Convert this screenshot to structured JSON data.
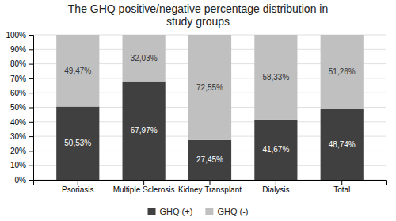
{
  "chart_data": {
    "type": "bar",
    "title": "The GHQ positive/negative percentage distribution in\nstudy groups",
    "categories": [
      "Psoriasis",
      "Multiple Sclerosis",
      "Kidney Transplant",
      "Dialysis",
      "Total"
    ],
    "series": [
      {
        "name": "GHQ (+)",
        "color": "#404040",
        "values": [
          50.53,
          67.97,
          27.45,
          41.67,
          48.74
        ],
        "value_labels": [
          "50,53%",
          "67,97%",
          "27,45%",
          "41,67%",
          "48,74%"
        ]
      },
      {
        "name": "GHQ (-)",
        "color": "#c0c0c0",
        "values": [
          49.47,
          32.03,
          72.55,
          58.33,
          51.26
        ],
        "value_labels": [
          "49,47%",
          "32,03%",
          "72,55%",
          "58,33%",
          "51,26%"
        ]
      }
    ],
    "stacked": true,
    "data_labels": true,
    "ylim": [
      0,
      100
    ],
    "yticks": [
      {
        "value": 0,
        "label": "0%"
      },
      {
        "value": 10,
        "label": "10%"
      },
      {
        "value": 20,
        "label": "20%"
      },
      {
        "value": 30,
        "label": "30%"
      },
      {
        "value": 40,
        "label": "40%"
      },
      {
        "value": 50,
        "label": "50%"
      },
      {
        "value": 60,
        "label": "60%"
      },
      {
        "value": 70,
        "label": "70%"
      },
      {
        "value": 80,
        "label": "80%"
      },
      {
        "value": 90,
        "label": "90%"
      },
      {
        "value": 100,
        "label": "100%"
      }
    ],
    "grid": true,
    "legend": "bottom"
  }
}
